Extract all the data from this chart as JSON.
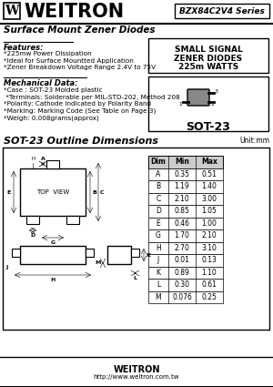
{
  "title_company": "WEITRON",
  "series": "BZX84C2V4 Series",
  "subtitle": "Surface Mount Zener Diodes",
  "features_title": "Features:",
  "features": [
    "*225mw Power Dissipation",
    "*Ideal for Surface Mountted Application",
    "*Zener Breakdown Voltage Range 2.4V to 75V"
  ],
  "mechanical_title": "Mechanical Data:",
  "mechanical": [
    "*Case : SOT-23 Molded plastic",
    " *Terminals: Solderable per MIL-STD-202, Method 208",
    "*Polarity: Cathode Indicated by Polarity Band",
    "*Marking: Marking Code (See Table on Page 3)",
    "*Weigh: 0.008grams(approx)"
  ],
  "signal_box": [
    "SMALL SIGNAL",
    "ZENER DIODES",
    "225m WATTS"
  ],
  "package": "SOT-23",
  "outline_title": "SOT-23 Outline Dimensions",
  "unit": "Unit:mm",
  "table_headers": [
    "Dim",
    "Min",
    "Max"
  ],
  "table_data": [
    [
      "A",
      "0.35",
      "0.51"
    ],
    [
      "B",
      "1.19",
      "1.40"
    ],
    [
      "C",
      "2.10",
      "3.00"
    ],
    [
      "D",
      "0.85",
      "1.05"
    ],
    [
      "E",
      "0.46",
      "1.00"
    ],
    [
      "G",
      "1.70",
      "2.10"
    ],
    [
      "H",
      "2.70",
      "3.10"
    ],
    [
      "J",
      "0.01",
      "0.13"
    ],
    [
      "K",
      "0.89",
      "1.10"
    ],
    [
      "L",
      "0.30",
      "0.61"
    ],
    [
      "M",
      "0.076",
      "0.25"
    ]
  ],
  "footer_company": "WEITRON",
  "footer_url": "http://www.weitron.com.tw",
  "bg_color": "#ffffff"
}
